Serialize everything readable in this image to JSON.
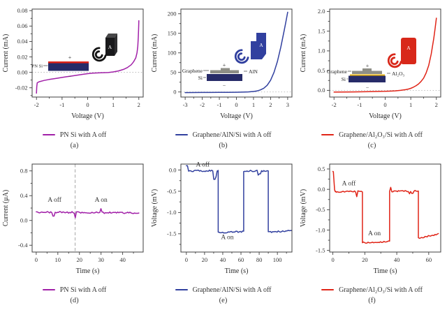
{
  "chart_data": [
    {
      "panel_label": "(a)",
      "legend": "PN Si with A off",
      "type": "line",
      "color": "#a120a8",
      "xlabel": "Voltage (V)",
      "ylabel": "Current (mA)",
      "xlim": [
        -2.17,
        2.17
      ],
      "ylim": [
        -0.032,
        0.082
      ],
      "zero_line": true,
      "xticks": [
        [
          -2,
          "-2"
        ],
        [
          -1,
          "-1"
        ],
        [
          0,
          "0"
        ],
        [
          1,
          "1"
        ],
        [
          2,
          "2"
        ]
      ],
      "yticks": [
        [
          -0.02,
          "-0.02"
        ],
        [
          0,
          "0.00"
        ],
        [
          0.02,
          "0.02"
        ],
        [
          0.04,
          "0.04"
        ],
        [
          0.06,
          "0.06"
        ],
        [
          0.08,
          "0.08"
        ]
      ],
      "points": [
        [
          -2,
          -0.027
        ],
        [
          -1.99,
          -0.019
        ],
        [
          -1.97,
          -0.0135
        ],
        [
          -1.9,
          -0.0122
        ],
        [
          -1.7,
          -0.0105
        ],
        [
          -1.5,
          -0.0092
        ],
        [
          -1.2,
          -0.0077
        ],
        [
          -1,
          -0.0066
        ],
        [
          -0.8,
          -0.0056
        ],
        [
          -0.6,
          -0.0046
        ],
        [
          -0.4,
          -0.0036
        ],
        [
          -0.2,
          -0.0026
        ],
        [
          0,
          -0.0017
        ],
        [
          0.2,
          -0.0011
        ],
        [
          0.5,
          -0.0006
        ],
        [
          0.8,
          -0.0002
        ],
        [
          1,
          0.0006
        ],
        [
          1.2,
          0.0018
        ],
        [
          1.4,
          0.0038
        ],
        [
          1.55,
          0.0062
        ],
        [
          1.7,
          0.0098
        ],
        [
          1.8,
          0.0139
        ],
        [
          1.88,
          0.0188
        ],
        [
          1.93,
          0.0255
        ],
        [
          1.96,
          0.034
        ],
        [
          1.98,
          0.0455
        ],
        [
          1.99,
          0.055
        ],
        [
          2,
          0.067
        ]
      ],
      "inset": {
        "labels": {
          "device": "PN Si",
          "plus": "+",
          "minus": "−",
          "speaker": "A"
        },
        "colors": {
          "pn_layer": "#272b68",
          "top_electrode": "#e02417",
          "speaker": "#19191b"
        }
      }
    },
    {
      "panel_label": "(b)",
      "legend": "Graphene/AlN/Si with A off",
      "type": "line",
      "color": "#31409f",
      "xlabel": "Voltage (V)",
      "ylabel": "Current (mA)",
      "xlim": [
        -3.25,
        3.25
      ],
      "ylim": [
        -13,
        212
      ],
      "zero_line": true,
      "xticks": [
        [
          -3,
          "-3"
        ],
        [
          -2,
          "-2"
        ],
        [
          -1,
          "-1"
        ],
        [
          0,
          "0"
        ],
        [
          1,
          "1"
        ],
        [
          2,
          "2"
        ],
        [
          3,
          "3"
        ]
      ],
      "yticks": [
        [
          0,
          "0"
        ],
        [
          50,
          "50"
        ],
        [
          100,
          "100"
        ],
        [
          150,
          "150"
        ],
        [
          200,
          "200"
        ]
      ],
      "points": [
        [
          -3,
          -1.5
        ],
        [
          -2.5,
          -1.4
        ],
        [
          -2,
          -1.3
        ],
        [
          -1.5,
          -1.2
        ],
        [
          -1,
          -1.1
        ],
        [
          -0.5,
          -0.9
        ],
        [
          0,
          -0.7
        ],
        [
          0.4,
          -0.3
        ],
        [
          0.7,
          0.2
        ],
        [
          1,
          1.2
        ],
        [
          1.2,
          2.6
        ],
        [
          1.4,
          5.2
        ],
        [
          1.6,
          9.5
        ],
        [
          1.8,
          17
        ],
        [
          2,
          30
        ],
        [
          2.2,
          50
        ],
        [
          2.4,
          78
        ],
        [
          2.6,
          115
        ],
        [
          2.8,
          158
        ],
        [
          2.9,
          180
        ],
        [
          3,
          204
        ]
      ],
      "inset": {
        "labels": {
          "top": "Graphene",
          "bottom": "Si",
          "right": "AlN",
          "plus": "+",
          "minus": "−",
          "speaker": "A"
        },
        "colors": {
          "graphene": "#8e8e86",
          "si": "#272b68",
          "speaker": "#31409f"
        }
      }
    },
    {
      "panel_label": "(c)",
      "legend": "Graphene/Al₂O₃/Si with A off",
      "type": "line",
      "color": "#e02417",
      "xlabel": "Voltage (V)",
      "ylabel": "Current (mA)",
      "xlim": [
        -2.17,
        2.17
      ],
      "ylim": [
        -0.17,
        2.06
      ],
      "zero_line": true,
      "xticks": [
        [
          -2,
          "-2"
        ],
        [
          -1,
          "-1"
        ],
        [
          0,
          "0"
        ],
        [
          1,
          "1"
        ],
        [
          2,
          "2"
        ]
      ],
      "yticks": [
        [
          0,
          "0.0"
        ],
        [
          0.5,
          "0.5"
        ],
        [
          1,
          "1.0"
        ],
        [
          1.5,
          "1.5"
        ],
        [
          2,
          "2.0"
        ]
      ],
      "points": [
        [
          -2,
          -0.045
        ],
        [
          -1.5,
          -0.041
        ],
        [
          -1,
          -0.037
        ],
        [
          -0.6,
          -0.033
        ],
        [
          -0.3,
          -0.029
        ],
        [
          0,
          -0.025
        ],
        [
          0.2,
          -0.02
        ],
        [
          0.4,
          -0.012
        ],
        [
          0.6,
          0
        ],
        [
          0.8,
          0.018
        ],
        [
          0.9,
          0.032
        ],
        [
          1,
          0.052
        ],
        [
          1.1,
          0.08
        ],
        [
          1.2,
          0.115
        ],
        [
          1.3,
          0.16
        ],
        [
          1.4,
          0.225
        ],
        [
          1.5,
          0.31
        ],
        [
          1.6,
          0.44
        ],
        [
          1.7,
          0.63
        ],
        [
          1.8,
          0.92
        ],
        [
          1.9,
          1.32
        ],
        [
          1.95,
          1.56
        ],
        [
          2,
          1.83
        ]
      ],
      "inset": {
        "labels": {
          "top": "Graphene",
          "bottom": "Si",
          "right": "Al₂O₃",
          "plus": "+",
          "minus": "−",
          "speaker": "A"
        },
        "colors": {
          "graphene": "#8e8e86",
          "al2o3": "#e8b416",
          "si": "#272b68",
          "speaker": "#d8281a"
        }
      }
    },
    {
      "panel_label": "(d)",
      "legend": "PN Si with A off",
      "type": "noisy_line",
      "color": "#a120a8",
      "xlabel": "Time (s)",
      "ylabel": "Current (μA)",
      "xlim": [
        -1.9,
        49.5
      ],
      "ylim": [
        -0.51,
        0.91
      ],
      "xticks": [
        [
          0,
          "0"
        ],
        [
          10,
          "10"
        ],
        [
          20,
          "20"
        ],
        [
          30,
          "30"
        ],
        [
          40,
          "40"
        ]
      ],
      "yticks": [
        [
          -0.4,
          "-0.4"
        ],
        [
          0,
          "0.0"
        ],
        [
          0.4,
          "0.4"
        ],
        [
          0.8,
          "0.8"
        ]
      ],
      "vline": 18,
      "noise": 0.013,
      "segments": [
        {
          "t0": 0,
          "t1": 47.5,
          "v0": 0.135,
          "v1": 0.12
        }
      ],
      "spikes": [
        [
          8,
          0.07
        ],
        [
          18,
          0.045
        ],
        [
          30,
          0.19
        ]
      ],
      "annotations": [
        {
          "text": "A off",
          "x": 8.5,
          "y": 0.3
        },
        {
          "text": "A on",
          "x": 30,
          "y": 0.3
        }
      ]
    },
    {
      "panel_label": "(e)",
      "legend": "Graphene/AlN/Si with A off",
      "type": "noisy_line",
      "color": "#31409f",
      "xlabel": "Time (s)",
      "ylabel": "Voltage (mV)",
      "xlim": [
        -6,
        116
      ],
      "ylim": [
        -1.93,
        0.14
      ],
      "xticks": [
        [
          0,
          "0"
        ],
        [
          20,
          "20"
        ],
        [
          40,
          "40"
        ],
        [
          60,
          "60"
        ],
        [
          80,
          "80"
        ],
        [
          100,
          "100"
        ]
      ],
      "yticks": [
        [
          0,
          "0.0"
        ],
        [
          -0.5,
          "-0.5"
        ],
        [
          -1,
          "-1.0"
        ],
        [
          -1.5,
          "-1.5"
        ]
      ],
      "noise": 0.018,
      "segments": [
        {
          "t0": 0,
          "t1": 35,
          "v0": -0.02,
          "v1": -0.02
        },
        {
          "t0": 35,
          "t1": 63,
          "v0": -1.47,
          "v1": -1.45
        },
        {
          "t0": 63,
          "t1": 90,
          "v0": -0.02,
          "v1": -0.02
        },
        {
          "t0": 90,
          "t1": 115.5,
          "v0": -1.46,
          "v1": -1.43
        }
      ],
      "spikes": [
        [
          0.8,
          0.1
        ],
        [
          31,
          -0.22
        ],
        [
          32.5,
          -0.16
        ],
        [
          79,
          -0.12
        ],
        [
          80.5,
          -0.09
        ]
      ],
      "annotations": [
        {
          "text": "A off",
          "x": 18,
          "y": 0.08
        },
        {
          "text": "A on",
          "x": 45,
          "y": -1.63
        }
      ]
    },
    {
      "panel_label": "(f)",
      "legend": "Graphene/Al₂O₃/Si with A off",
      "type": "noisy_line",
      "color": "#e02417",
      "xlabel": "Time (s)",
      "ylabel": "Voltage (mV)",
      "xlim": [
        -2,
        67.5
      ],
      "ylim": [
        -1.54,
        0.62
      ],
      "xticks": [
        [
          0,
          "0"
        ],
        [
          20,
          "20"
        ],
        [
          40,
          "40"
        ],
        [
          60,
          "60"
        ]
      ],
      "yticks": [
        [
          0.5,
          "0.5"
        ],
        [
          0,
          "0.0"
        ],
        [
          -0.5,
          "-0.5"
        ],
        [
          -1,
          "-1.0"
        ],
        [
          -1.5,
          "-1.5"
        ]
      ],
      "noise": 0.016,
      "lead_points": [
        [
          0,
          0.44
        ],
        [
          0.3,
          0.43
        ],
        [
          0.7,
          0.2
        ],
        [
          1.1,
          -0.02
        ],
        [
          1.6,
          -0.06
        ]
      ],
      "segments": [
        {
          "t0": 1.6,
          "t1": 18.5,
          "v0": -0.06,
          "v1": -0.05
        },
        {
          "t0": 18.5,
          "t1": 35.5,
          "v0": -1.31,
          "v1": -1.28
        },
        {
          "t0": 35.5,
          "t1": 53.5,
          "v0": -0.05,
          "v1": -0.04
        },
        {
          "t0": 53.5,
          "t1": 66,
          "v0": -1.2,
          "v1": -1.1
        }
      ],
      "spikes": [
        [
          15,
          -0.18
        ],
        [
          36.2,
          0.05
        ],
        [
          48,
          -0.11
        ],
        [
          49.5,
          -0.1
        ]
      ],
      "annotations": [
        {
          "text": "A off",
          "x": 10,
          "y": 0.1
        },
        {
          "text": "A on",
          "x": 26,
          "y": -1.13
        }
      ]
    }
  ]
}
